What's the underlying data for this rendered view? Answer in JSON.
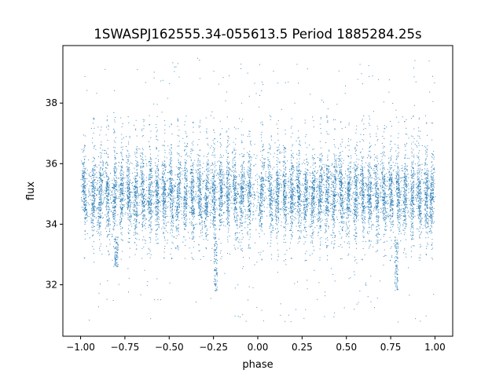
{
  "chart_data": {
    "type": "scatter",
    "title": "1SWASPJ162555.34-055613.5 Period 1885284.25s",
    "xlabel": "phase",
    "ylabel": "flux",
    "xlim": [
      -1.1,
      1.1
    ],
    "ylim": [
      30.3,
      39.9
    ],
    "grid": false,
    "legend": "none",
    "marker_color": "#1f77b4",
    "x_ticks": [
      {
        "value": -1.0,
        "label": "−1.00"
      },
      {
        "value": -0.75,
        "label": "−0.75"
      },
      {
        "value": -0.5,
        "label": "−0.50"
      },
      {
        "value": -0.25,
        "label": "−0.25"
      },
      {
        "value": 0.0,
        "label": "0.00"
      },
      {
        "value": 0.25,
        "label": "0.25"
      },
      {
        "value": 0.5,
        "label": "0.50"
      },
      {
        "value": 0.75,
        "label": "0.75"
      },
      {
        "value": 1.0,
        "label": "1.00"
      }
    ],
    "y_ticks": [
      {
        "value": 32,
        "label": "32"
      },
      {
        "value": 34,
        "label": "34"
      },
      {
        "value": 36,
        "label": "36"
      },
      {
        "value": 38,
        "label": "38"
      }
    ],
    "series": [
      {
        "x_range": [
          -1.0,
          1.0
        ],
        "median_flux": 35.0,
        "core_flux_range": [
          33.8,
          36.2
        ],
        "outlier_flux_range": [
          30.7,
          39.5
        ],
        "band_centers": [
          -0.98,
          -0.93,
          -0.89,
          -0.85,
          -0.81,
          -0.77,
          -0.73,
          -0.69,
          -0.65,
          -0.61,
          -0.57,
          -0.53,
          -0.49,
          -0.45,
          -0.41,
          -0.37,
          -0.33,
          -0.29,
          -0.25,
          -0.21,
          -0.17,
          -0.13,
          -0.09,
          -0.05,
          0.02,
          0.07,
          0.11,
          0.15,
          0.19,
          0.23,
          0.27,
          0.31,
          0.35,
          0.39,
          0.43,
          0.47,
          0.51,
          0.55,
          0.59,
          0.63,
          0.67,
          0.71,
          0.75,
          0.79,
          0.83,
          0.87,
          0.91,
          0.95,
          0.98
        ],
        "dip_features": [
          {
            "x": -0.24,
            "flux_min": 31.8,
            "flux_max": 33.6
          },
          {
            "x": 0.78,
            "flux_min": 31.8,
            "flux_max": 33.6
          },
          {
            "x": -0.8,
            "flux_min": 32.6,
            "flux_max": 33.6
          }
        ]
      }
    ]
  }
}
